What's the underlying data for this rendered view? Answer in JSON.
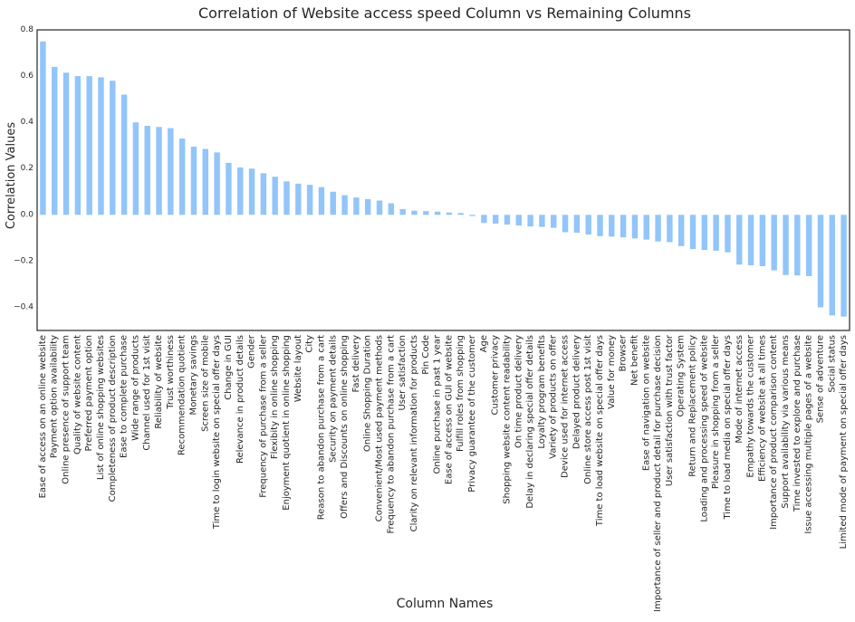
{
  "chart_data": {
    "type": "bar",
    "title": "Correlation of Website access speed Column vs Remaining Columns",
    "xlabel": "Column Names",
    "ylabel": "Correlation Values",
    "ylim": [
      -0.5,
      0.8
    ],
    "yticks": [
      -0.4,
      -0.2,
      0.0,
      0.2,
      0.4,
      0.6,
      0.8
    ],
    "ytick_labels": [
      "−0.4",
      "−0.2",
      "0.0",
      "0.2",
      "0.4",
      "0.6",
      "0.8"
    ],
    "grid": false,
    "bar_color": "#92c5f9",
    "categories": [
      "Ease of access on an online website",
      "Payment option availability",
      "Online presence of support team",
      "Quality of website content",
      "Preferred payment option",
      "List of online shopping websites",
      "Completeness of product description",
      "Ease to complete purchase",
      "Wide range of products",
      "Channel used for 1st visit",
      "Reliability of website",
      "Trust worthiness",
      "Recommendation quotient",
      "Monetary savings",
      "Screen size of mobile",
      "Time to login website on special offer days",
      "Change in GUI",
      "Relevance in product details",
      "Gender",
      "Frequency of purchase from a seller",
      "Flexibity in online shopping",
      "Enjoyment quotient in online shopping",
      "Website layout",
      "City",
      "Reason to abandon purchase from a cart",
      "Security on payment details",
      "Offers and Discounts on online shopping",
      "Fast delivery",
      "Online Shopping Duration",
      "Convenient/Most used payment methods",
      "Frequency to abandon purchase from a cart",
      "User satisfaction",
      "Clarity on relevant information for products",
      "Pin Code",
      "Online purchase in past 1 year",
      "Ease of access on GUI of website",
      "Fulfill roles from shopping",
      "Privacy guarantee of the customer",
      "Age",
      "Customer privacy",
      "Shopping website content readability",
      "On time product delivery",
      "Delay in declaring special offer details",
      "Loyalty program benefits",
      "Variety of products on offer",
      "Device used for internet access",
      "Delayed product delivery",
      "Online store access post 1st visit",
      "Time to load website on special offer days",
      "Value for money",
      "Browser",
      "Net benefit",
      "Ease of navigation on website",
      "Importance of seller and product detail for purchase decision",
      "User satisfaction with trust factor",
      "Operating System",
      "Return and Replacement policy",
      "Loading and processing speed of website",
      "Pleasure in shopping from a seller",
      "Time to load media on special offer days",
      "Mode of internet access",
      "Empathy towards the customer",
      "Efficiency of website at all times",
      "Importance of product comparison content",
      "Support availability via various means",
      "Time invested to explore and purchase",
      "Issue accessing multiple pages of a website",
      "Sense of adventure",
      "Social status",
      "Limited mode of payment on special offer days"
    ],
    "values": [
      0.75,
      0.64,
      0.615,
      0.6,
      0.6,
      0.595,
      0.58,
      0.52,
      0.4,
      0.385,
      0.38,
      0.375,
      0.33,
      0.295,
      0.285,
      0.27,
      0.225,
      0.205,
      0.2,
      0.18,
      0.165,
      0.145,
      0.135,
      0.13,
      0.12,
      0.1,
      0.085,
      0.075,
      0.068,
      0.062,
      0.05,
      0.025,
      0.018,
      0.016,
      0.014,
      0.01,
      0.008,
      -0.005,
      -0.035,
      -0.038,
      -0.042,
      -0.046,
      -0.05,
      -0.052,
      -0.056,
      -0.075,
      -0.077,
      -0.085,
      -0.092,
      -0.094,
      -0.097,
      -0.102,
      -0.107,
      -0.115,
      -0.118,
      -0.135,
      -0.148,
      -0.152,
      -0.155,
      -0.162,
      -0.215,
      -0.218,
      -0.222,
      -0.24,
      -0.26,
      -0.262,
      -0.265,
      -0.4,
      -0.435,
      -0.44
    ]
  }
}
